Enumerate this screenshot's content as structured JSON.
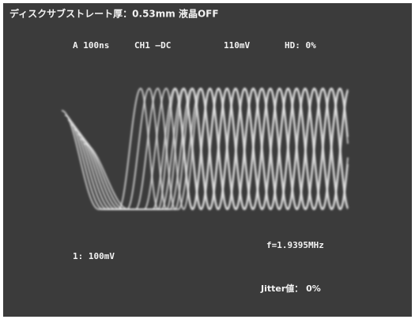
{
  "header": {
    "title": "ディスクサブストレート厚：0.53mm 液晶OFF"
  },
  "status": {
    "timebase": "A 100ns",
    "channel": "CH1 —DC",
    "level": "110mV",
    "hd": "HD: 0%"
  },
  "scale": "1: 100mV",
  "frequency": "f=1.9395MHz",
  "jitter": "Jitter値： 0%"
}
